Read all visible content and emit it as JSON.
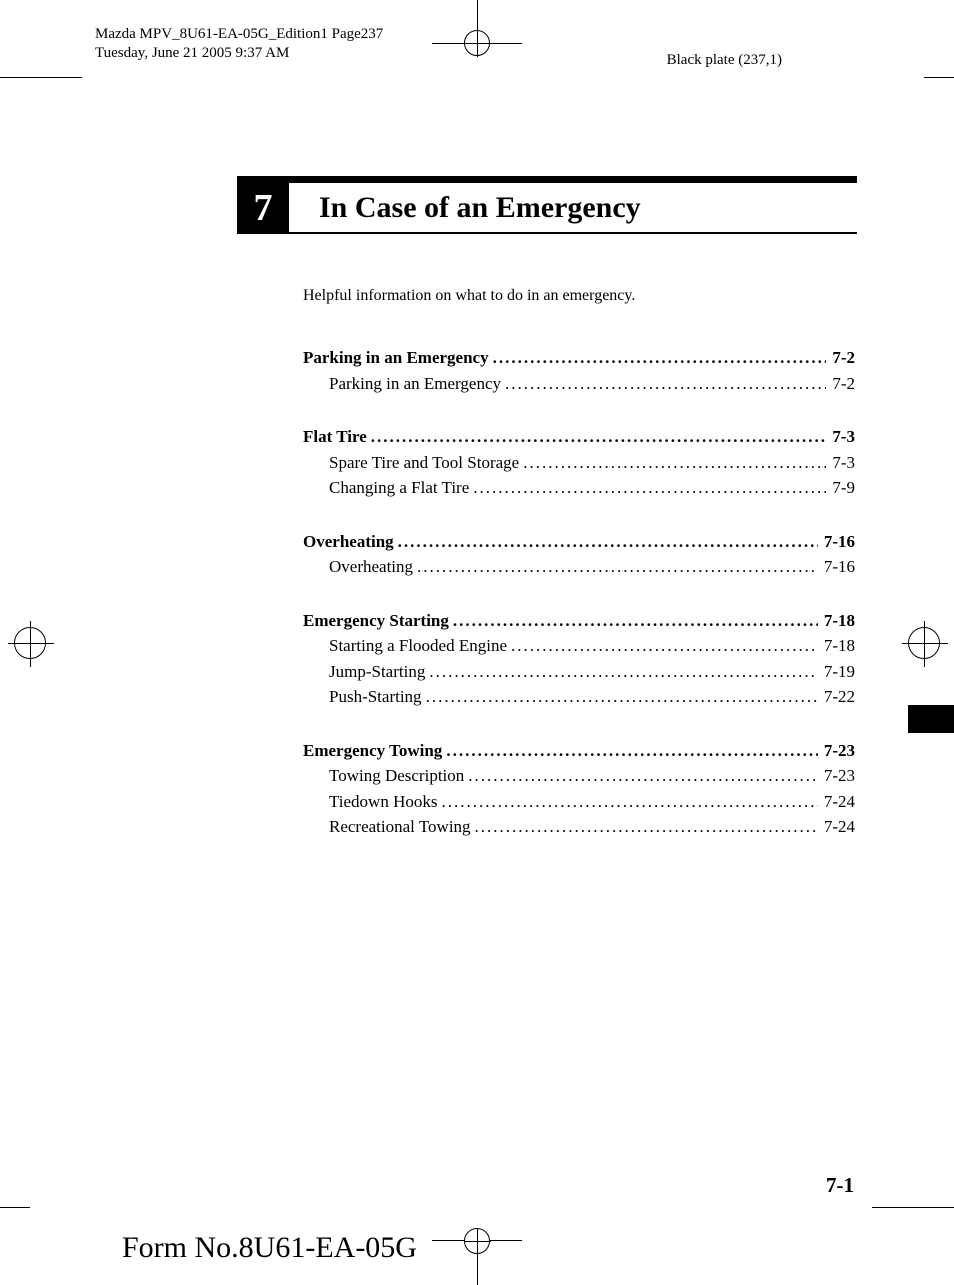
{
  "meta": {
    "doc_line1": "Mazda MPV_8U61-EA-05G_Edition1 Page237",
    "doc_line2": "Tuesday, June 21 2005 9:37 AM",
    "plate": "Black plate (237,1)"
  },
  "chapter": {
    "number": "7",
    "title": "In Case of an Emergency",
    "subtitle": "Helpful information on what to do in an emergency."
  },
  "toc": [
    {
      "heading": {
        "label": "Parking in an Emergency",
        "page": "7-2"
      },
      "items": [
        {
          "label": "Parking in an Emergency",
          "page": "7-2"
        }
      ]
    },
    {
      "heading": {
        "label": "Flat Tire",
        "page": "7-3"
      },
      "items": [
        {
          "label": "Spare Tire and Tool Storage",
          "page": "7-3"
        },
        {
          "label": "Changing a Flat Tire",
          "page": "7-9"
        }
      ]
    },
    {
      "heading": {
        "label": "Overheating",
        "page": "7-16"
      },
      "items": [
        {
          "label": "Overheating",
          "page": "7-16"
        }
      ]
    },
    {
      "heading": {
        "label": "Emergency Starting",
        "page": "7-18"
      },
      "items": [
        {
          "label": "Starting a Flooded Engine",
          "page": "7-18"
        },
        {
          "label": "Jump-Starting",
          "page": "7-19"
        },
        {
          "label": "Push-Starting",
          "page": "7-22"
        }
      ]
    },
    {
      "heading": {
        "label": "Emergency Towing",
        "page": "7-23"
      },
      "items": [
        {
          "label": "Towing Description",
          "page": "7-23"
        },
        {
          "label": "Tiedown Hooks",
          "page": "7-24"
        },
        {
          "label": "Recreational Towing",
          "page": "7-24"
        }
      ]
    }
  ],
  "footer": {
    "page_number": "7-1",
    "form_no": "Form No.8U61-EA-05G"
  }
}
